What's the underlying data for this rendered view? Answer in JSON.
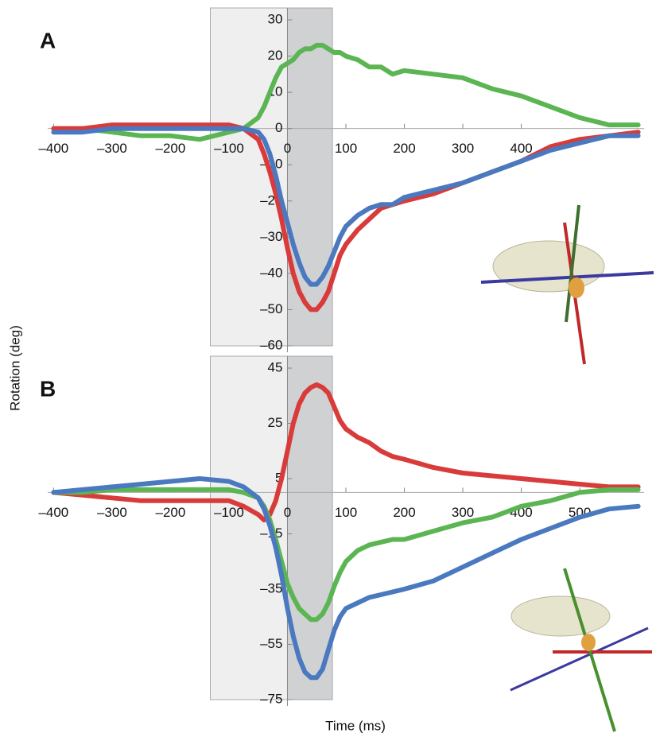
{
  "chart_data": [
    {
      "type": "line",
      "panel_label": "A",
      "ylabel": "Rotation (deg)",
      "xlim": [
        -410,
        610
      ],
      "ylim": [
        -60,
        30
      ],
      "xticks": [
        {
          "value": -400,
          "label": "–400"
        },
        {
          "value": -300,
          "label": "–300"
        },
        {
          "value": -200,
          "label": "–200"
        },
        {
          "value": -100,
          "label": "–100"
        },
        0,
        100,
        200,
        300,
        400
      ],
      "yticks": [
        30,
        20,
        10,
        0,
        {
          "value": -10,
          "label": "–10"
        },
        {
          "value": -20,
          "label": "–20"
        },
        {
          "value": -30,
          "label": "–30"
        },
        {
          "value": -40,
          "label": "–40"
        },
        {
          "value": -50,
          "label": "–50"
        },
        {
          "value": -60,
          "label": "–60"
        }
      ],
      "spans": [
        {
          "range": [
            -132,
            0
          ],
          "color": "#efefef"
        },
        {
          "range": [
            0,
            77
          ],
          "color": "#d0d1d3"
        }
      ],
      "x": [
        -400,
        -350,
        -300,
        -250,
        -200,
        -150,
        -100,
        -75,
        -50,
        -40,
        -30,
        -20,
        -10,
        0,
        10,
        20,
        30,
        40,
        50,
        60,
        70,
        80,
        90,
        100,
        120,
        140,
        160,
        180,
        200,
        250,
        300,
        350,
        400,
        450,
        500,
        550,
        600
      ],
      "series": [
        {
          "color": "#5cb553",
          "values": [
            0,
            0,
            -1,
            -2,
            -2,
            -3,
            -1,
            0,
            3,
            6,
            10,
            14,
            17,
            18,
            19,
            21,
            22,
            22,
            23,
            23,
            22,
            21,
            21,
            20,
            19,
            17,
            17,
            15,
            16,
            15,
            14,
            11,
            9,
            6,
            3,
            1,
            1
          ]
        },
        {
          "color": "#d93a3a",
          "values": [
            0,
            0,
            1,
            1,
            1,
            1,
            1,
            0,
            -3,
            -7,
            -12,
            -18,
            -25,
            -33,
            -40,
            -45,
            -48,
            -50,
            -50,
            -48,
            -45,
            -40,
            -35,
            -32,
            -28,
            -25,
            -22,
            -21,
            -20,
            -18,
            -15,
            -12,
            -9,
            -5,
            -3,
            -2,
            -1
          ]
        },
        {
          "color": "#4a79c0",
          "values": [
            -1,
            -1,
            0,
            0,
            0,
            0,
            0,
            0,
            -1,
            -3,
            -7,
            -13,
            -20,
            -26,
            -32,
            -37,
            -41,
            -43,
            -43,
            -41,
            -38,
            -34,
            -30,
            -27,
            -24,
            -22,
            -21,
            -21,
            -19,
            -17,
            -15,
            -12,
            -9,
            -6,
            -4,
            -2,
            -2
          ]
        }
      ]
    },
    {
      "type": "line",
      "panel_label": "B",
      "xlabel": "Time (ms)",
      "xlim": [
        -410,
        610
      ],
      "ylim": [
        -75,
        45
      ],
      "xticks": [
        {
          "value": -400,
          "label": "–400"
        },
        {
          "value": -300,
          "label": "–300"
        },
        {
          "value": -200,
          "label": "–200"
        },
        {
          "value": -100,
          "label": "–100"
        },
        0,
        100,
        200,
        300,
        400,
        500
      ],
      "yticks": [
        45,
        25,
        5,
        {
          "value": -15,
          "label": "–15"
        },
        {
          "value": -35,
          "label": "–35"
        },
        {
          "value": -55,
          "label": "–55"
        },
        {
          "value": -75,
          "label": "–75"
        }
      ],
      "spans": [
        {
          "range": [
            -132,
            0
          ],
          "color": "#efefef"
        },
        {
          "range": [
            0,
            77
          ],
          "color": "#d0d1d3"
        }
      ],
      "x": [
        -400,
        -350,
        -300,
        -250,
        -200,
        -150,
        -100,
        -75,
        -50,
        -40,
        -30,
        -20,
        -10,
        0,
        10,
        20,
        30,
        40,
        50,
        60,
        70,
        80,
        90,
        100,
        120,
        140,
        160,
        180,
        200,
        250,
        300,
        350,
        400,
        450,
        500,
        550,
        600
      ],
      "series": [
        {
          "color": "#d93a3a",
          "values": [
            0,
            -1,
            -2,
            -3,
            -3,
            -3,
            -3,
            -5,
            -8,
            -10,
            -8,
            -3,
            5,
            15,
            25,
            32,
            36,
            38,
            39,
            38,
            36,
            31,
            26,
            23,
            20,
            18,
            15,
            13,
            12,
            9,
            7,
            6,
            5,
            4,
            3,
            2,
            2
          ]
        },
        {
          "color": "#5cb553",
          "values": [
            0,
            0,
            1,
            1,
            1,
            1,
            1,
            0,
            -2,
            -5,
            -10,
            -17,
            -25,
            -33,
            -38,
            -42,
            -44,
            -46,
            -46,
            -44,
            -40,
            -34,
            -29,
            -25,
            -21,
            -19,
            -18,
            -17,
            -17,
            -14,
            -11,
            -9,
            -5,
            -3,
            0,
            1,
            1
          ]
        },
        {
          "color": "#4a79c0",
          "values": [
            0,
            1,
            2,
            3,
            4,
            5,
            4,
            2,
            -2,
            -6,
            -12,
            -20,
            -30,
            -42,
            -52,
            -60,
            -65,
            -67,
            -67,
            -64,
            -57,
            -50,
            -45,
            -42,
            -40,
            -38,
            -37,
            -36,
            -35,
            -32,
            -27,
            -22,
            -17,
            -13,
            -9,
            -6,
            -5
          ]
        }
      ]
    }
  ]
}
